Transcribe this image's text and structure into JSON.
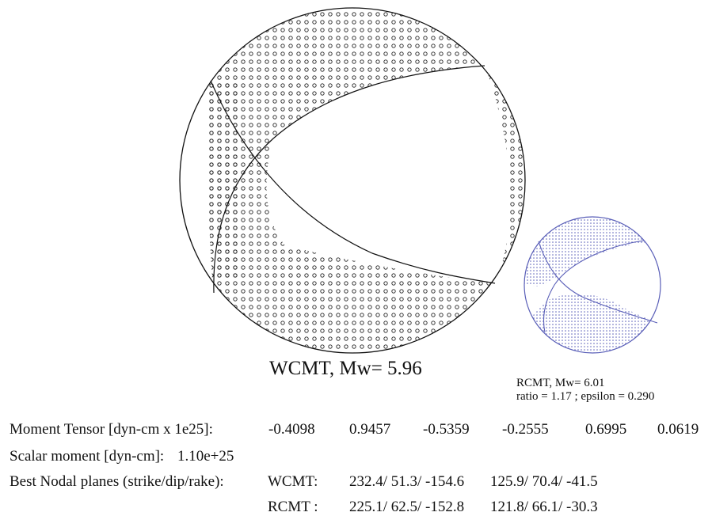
{
  "wcmt_label": "WCMT, Mw=  5.96",
  "rcmt_label": "RCMT, Mw=  6.01",
  "ratio_line": "ratio =  1.17 ;  epsilon =  0.290",
  "moment_tensor": {
    "label": "Moment Tensor [dyn-cm x 1e25]:",
    "values": [
      "-0.4098",
      "0.9457",
      "-0.5359",
      "-0.2555",
      "0.6995",
      "0.0619"
    ]
  },
  "scalar_moment": {
    "label": "Scalar moment [dyn-cm]:",
    "value": "1.10e+25"
  },
  "nodal_planes": {
    "label": "Best Nodal planes (strike/dip/rake):",
    "wcmt": {
      "name": "WCMT:",
      "plane1": "232.4/ 51.3/ -154.6",
      "plane2": "125.9/ 70.4/  -41.5"
    },
    "rcmt": {
      "name": "RCMT :",
      "plane1": "225.1/ 62.5/ -152.8",
      "plane2": "121.8/ 66.1/  -30.3"
    }
  },
  "colors": {
    "wcmt": "#222222",
    "rcmt": "#5a5fb8"
  }
}
